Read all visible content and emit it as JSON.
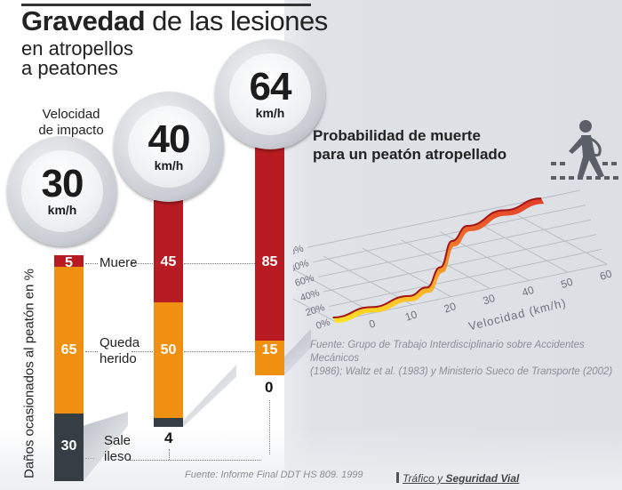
{
  "header": {
    "title_bold": "Gravedad",
    "title_rest": " de las lesiones",
    "subtitle_line1": "en atropellos",
    "subtitle_line2": "a peatones"
  },
  "left_panel": {
    "speed_label_line1": "Velocidad",
    "speed_label_line2": "de impacto",
    "y_axis_label": "Daños ocasionados al peatón en %",
    "source": "Fuente: Informe Final DDT HS 809. 1999"
  },
  "right_panel": {
    "title_line1": "Probabilidad de muerte",
    "title_line2": "para un peatón atropellado",
    "source_line1": "Fuente: Grupo de Trabajo Interdisciplinario sobre Accidentes Mecánicos",
    "source_line2": "(1986); Waltz et al. (1983) y Ministerio Sueco de Transporte (2002)",
    "icon": "pedestrian-injured-icon"
  },
  "brand": {
    "prefix": "Tráfico y ",
    "bold": "Seguridad Vial"
  },
  "colors": {
    "muere": "#b81c22",
    "herido": "#ef9013",
    "ileso": "#363e44"
  },
  "chart_data": [
    {
      "type": "bar",
      "stacked": true,
      "title": "Gravedad de las lesiones en atropellos a peatones",
      "xlabel": "Velocidad de impacto",
      "ylabel": "Daños ocasionados al peatón en %",
      "categories": [
        "30",
        "40",
        "64"
      ],
      "category_unit": "km/h",
      "series": [
        {
          "name": "Muere",
          "values": [
            5,
            45,
            85
          ]
        },
        {
          "name": "Queda herido",
          "values": [
            65,
            50,
            15
          ]
        },
        {
          "name": "Sale ileso",
          "values": [
            30,
            4,
            0
          ]
        }
      ],
      "series_labels": {
        "muere": "Muere",
        "herido_line1": "Queda",
        "herido_line2": "herido",
        "ileso_line1": "Sale",
        "ileso_line2": "ileso"
      },
      "source": "Fuente: Informe Final DDT HS 809. 1999"
    },
    {
      "type": "line",
      "title": "Probabilidad de muerte para un peatón atropellado",
      "xlabel": "Velocidad (km/h)",
      "ylabel": "",
      "x_ticks": [
        "0",
        "10",
        "20",
        "30",
        "40",
        "50",
        "60"
      ],
      "y_ticks": [
        "0%",
        "20%",
        "40%",
        "60%",
        "80%",
        "100%"
      ],
      "xlim": [
        0,
        60
      ],
      "ylim": [
        0,
        100
      ],
      "series": [
        {
          "name": "Probabilidad de muerte",
          "x": [
            0,
            10,
            20,
            25,
            30,
            35,
            40,
            50,
            60
          ],
          "y": [
            5,
            8,
            12,
            18,
            40,
            70,
            85,
            95,
            100
          ]
        }
      ],
      "grid": true
    }
  ]
}
